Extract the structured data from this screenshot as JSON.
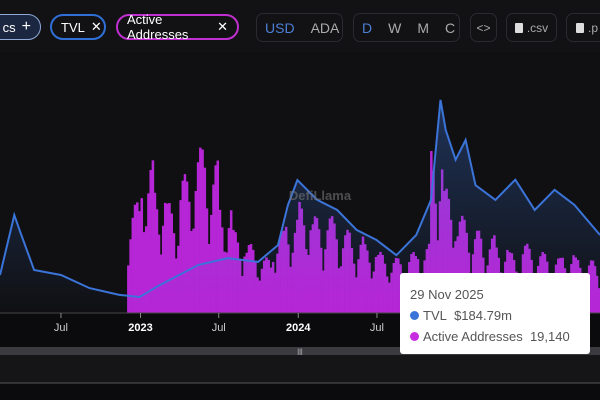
{
  "toolbar": {
    "metrics_label": "cs",
    "add_icon": "plus-icon",
    "metric_pills": [
      {
        "label": "TVL",
        "color": "#2f6fd6"
      },
      {
        "label": "Active Addresses",
        "color": "#c02fd0"
      }
    ],
    "close_icon": "x-icon",
    "currency": {
      "options": [
        "USD",
        "ADA"
      ],
      "selected": "USD"
    },
    "period": {
      "options": [
        "D",
        "W",
        "M",
        "C"
      ],
      "selected": "D"
    },
    "embed_label": "<>",
    "csv_label": ".csv",
    "png_label": ".p"
  },
  "watermark": "DefiLlama",
  "tooltip": {
    "date": "29 Nov 2025",
    "rows": [
      {
        "name": "TVL",
        "value": "$184.79m",
        "color": "#3b74d9"
      },
      {
        "name": "Active Addresses",
        "value": "19,140",
        "color": "#c62de0"
      }
    ]
  },
  "chart_data": {
    "type": "line+bar",
    "x_ticks": [
      {
        "label": "Jul",
        "date": "2022-07-01",
        "bold": false
      },
      {
        "label": "2023",
        "date": "2023-01-01",
        "bold": true
      },
      {
        "label": "Jul",
        "date": "2023-07-01",
        "bold": false
      },
      {
        "label": "2024",
        "date": "2024-01-01",
        "bold": true
      },
      {
        "label": "Jul",
        "date": "2024-07-01",
        "bold": false
      }
    ],
    "xlim": [
      "2022-02-10",
      "2025-11-29"
    ],
    "grid": false,
    "series": [
      {
        "name": "TVL",
        "type": "line",
        "color": "#3b74d9",
        "unit": "$m",
        "points": [
          [
            "2022-02-10",
            90
          ],
          [
            "2022-03-15",
            232
          ],
          [
            "2022-03-27",
            197
          ],
          [
            "2022-04-30",
            102
          ],
          [
            "2022-07-01",
            90
          ],
          [
            "2022-09-05",
            59
          ],
          [
            "2022-11-13",
            43
          ],
          [
            "2022-12-30",
            38
          ],
          [
            "2023-02-14",
            66
          ],
          [
            "2023-05-15",
            114
          ],
          [
            "2023-07-22",
            130
          ],
          [
            "2023-09-30",
            121
          ],
          [
            "2023-11-15",
            161
          ],
          [
            "2023-12-08",
            256
          ],
          [
            "2023-12-30",
            315
          ],
          [
            "2024-02-14",
            268
          ],
          [
            "2024-03-31",
            244
          ],
          [
            "2024-05-15",
            197
          ],
          [
            "2024-06-30",
            173
          ],
          [
            "2024-08-15",
            137
          ],
          [
            "2024-09-30",
            185
          ],
          [
            "2024-11-03",
            268
          ],
          [
            "2024-11-25",
            505
          ],
          [
            "2024-12-07",
            434
          ],
          [
            "2024-12-30",
            363
          ],
          [
            "2025-01-22",
            410
          ],
          [
            "2025-02-14",
            303
          ],
          [
            "2025-04-01",
            268
          ],
          [
            "2025-05-17",
            316
          ],
          [
            "2025-07-01",
            244
          ],
          [
            "2025-08-16",
            292
          ],
          [
            "2025-10-01",
            256
          ],
          [
            "2025-11-29",
            184.79
          ]
        ]
      },
      {
        "name": "Active Addresses",
        "type": "bar",
        "color": "#b626d6",
        "points": [
          [
            "2022-12-01",
            40000
          ],
          [
            "2023-01-01",
            55000
          ],
          [
            "2023-02-01",
            45000
          ],
          [
            "2023-03-01",
            40000
          ],
          [
            "2023-04-01",
            50000
          ],
          [
            "2023-05-01",
            60000
          ],
          [
            "2023-06-01",
            55000
          ],
          [
            "2023-07-01",
            40000
          ],
          [
            "2023-08-01",
            30000
          ],
          [
            "2023-09-01",
            25000
          ],
          [
            "2023-10-01",
            20000
          ],
          [
            "2023-11-01",
            30000
          ],
          [
            "2023-12-01",
            35000
          ],
          [
            "2024-01-01",
            40000
          ],
          [
            "2024-02-01",
            35000
          ],
          [
            "2024-03-01",
            35000
          ],
          [
            "2024-04-01",
            30000
          ],
          [
            "2024-05-01",
            28000
          ],
          [
            "2024-06-01",
            25000
          ],
          [
            "2024-07-01",
            22000
          ],
          [
            "2024-08-01",
            20000
          ],
          [
            "2024-09-01",
            22000
          ],
          [
            "2024-10-01",
            25000
          ],
          [
            "2024-11-01",
            60000
          ],
          [
            "2024-12-01",
            45000
          ],
          [
            "2025-01-01",
            35000
          ],
          [
            "2025-02-01",
            30000
          ],
          [
            "2025-03-01",
            28000
          ],
          [
            "2025-04-01",
            25000
          ],
          [
            "2025-05-01",
            22000
          ],
          [
            "2025-06-01",
            25000
          ],
          [
            "2025-07-01",
            22000
          ],
          [
            "2025-08-01",
            20000
          ],
          [
            "2025-09-01",
            22000
          ],
          [
            "2025-10-01",
            20000
          ],
          [
            "2025-11-01",
            19140
          ]
        ]
      }
    ]
  }
}
